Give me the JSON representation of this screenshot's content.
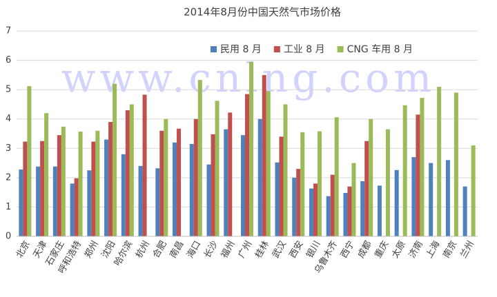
{
  "chart_data": {
    "type": "bar",
    "title": "2014年8月份中国天然气市场价格",
    "watermark": "www.cnlng.com",
    "categories": [
      "北京",
      "天津",
      "石家庄",
      "呼和浩特",
      "郑州",
      "沈阳",
      "哈尔滨",
      "杭州",
      "合肥",
      "南昌",
      "海口",
      "长沙",
      "福州",
      "广州",
      "桂林",
      "武汉",
      "西安",
      "银川",
      "乌鲁木齐",
      "西宁",
      "成都",
      "重庆",
      "太原",
      "济南",
      "上海",
      "南京",
      "兰州"
    ],
    "series": [
      {
        "name": "民用 8 月",
        "color": "#4f81bd",
        "values": [
          2.28,
          2.38,
          2.38,
          1.8,
          2.25,
          3.3,
          2.8,
          2.4,
          2.32,
          3.2,
          3.15,
          2.45,
          3.65,
          3.45,
          4.0,
          2.52,
          2.0,
          1.63,
          1.37,
          1.48,
          1.88,
          1.73,
          2.26,
          2.7,
          2.5,
          2.6,
          1.7
        ]
      },
      {
        "name": "工业 8 月",
        "color": "#c0504d",
        "values": [
          3.23,
          3.25,
          3.45,
          1.98,
          3.23,
          3.9,
          4.3,
          4.83,
          3.6,
          3.67,
          4.0,
          3.48,
          4.22,
          4.85,
          5.5,
          3.4,
          2.3,
          1.8,
          2.1,
          1.7,
          3.25,
          null,
          null,
          4.15,
          null,
          null,
          null
        ]
      },
      {
        "name": "CNG 车用 8 月",
        "color": "#9bbb59",
        "values": [
          5.12,
          4.2,
          3.74,
          3.57,
          3.6,
          5.2,
          4.5,
          null,
          4.0,
          null,
          5.33,
          4.62,
          null,
          5.95,
          4.95,
          4.5,
          3.55,
          3.58,
          4.06,
          2.5,
          4.0,
          3.65,
          4.47,
          4.72,
          5.1,
          4.9,
          3.1
        ]
      }
    ],
    "ylim": [
      0,
      7
    ],
    "yticks": [
      0,
      1,
      2,
      3,
      4,
      5,
      6,
      7
    ],
    "grid": true,
    "legend": "top-right"
  }
}
